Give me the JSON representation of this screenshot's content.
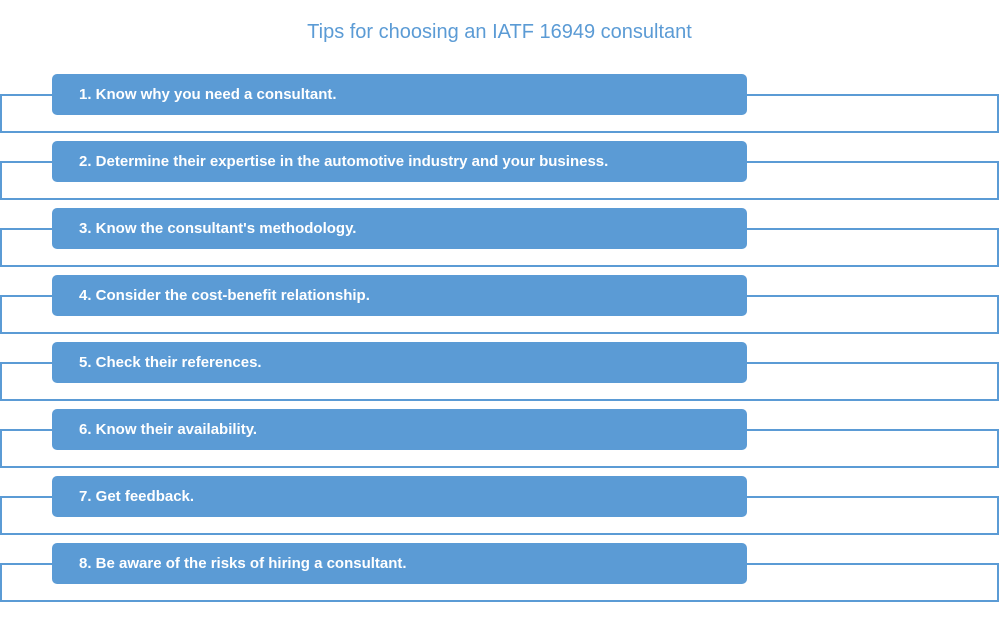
{
  "title": "Tips for choosing an IATF 16949 consultant",
  "tips": [
    "1. Know why you need a consultant.",
    "2. Determine their expertise in the automotive industry and your business.",
    "3. Know the consultant's methodology.",
    "4. Consider the cost-benefit relationship.",
    "5. Check their references.",
    "6. Know their availability.",
    "7. Get feedback.",
    "8. Be aware of the risks of hiring a consultant."
  ],
  "colors": {
    "accent": "#5b9bd5",
    "pill_text": "#ffffff"
  }
}
